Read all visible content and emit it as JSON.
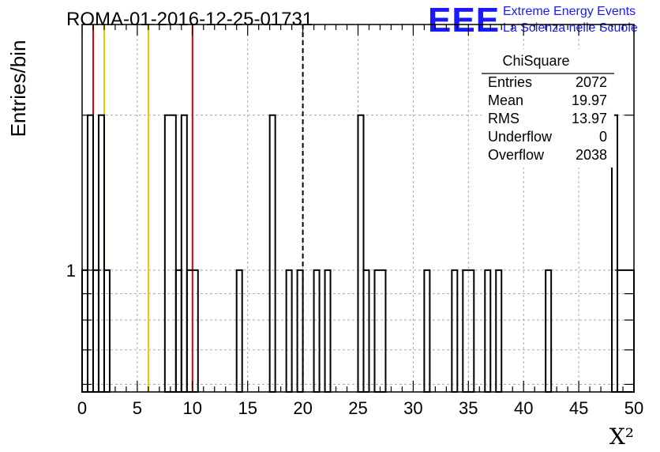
{
  "chart_data": {
    "type": "histogram",
    "title": "ROMA-01-2016-12-25-01731",
    "xlabel": "X²",
    "ylabel": "Entries/bin",
    "xlim": [
      0,
      50
    ],
    "y_scale": "log",
    "ylim": [
      0.58,
      3.0
    ],
    "x_ticks": [
      0,
      5,
      10,
      15,
      20,
      25,
      30,
      35,
      40,
      45,
      50
    ],
    "y_tick_labels": [
      {
        "value": 1,
        "label": "1"
      }
    ],
    "grid": true,
    "bins": [
      {
        "x0": 0.0,
        "x1": 0.5,
        "value": 1
      },
      {
        "x0": 0.5,
        "x1": 1.0,
        "value": 2
      },
      {
        "x0": 1.0,
        "x1": 1.5,
        "value": 1
      },
      {
        "x0": 1.5,
        "x1": 2.0,
        "value": 2
      },
      {
        "x0": 2.0,
        "x1": 2.5,
        "value": 1
      },
      {
        "x0": 7.5,
        "x1": 8.5,
        "value": 2
      },
      {
        "x0": 8.5,
        "x1": 9.0,
        "value": 1
      },
      {
        "x0": 9.0,
        "x1": 9.5,
        "value": 2
      },
      {
        "x0": 9.5,
        "x1": 10.5,
        "value": 1
      },
      {
        "x0": 14.0,
        "x1": 14.5,
        "value": 1
      },
      {
        "x0": 17.0,
        "x1": 17.5,
        "value": 2
      },
      {
        "x0": 18.5,
        "x1": 19.0,
        "value": 1
      },
      {
        "x0": 19.5,
        "x1": 20.0,
        "value": 1
      },
      {
        "x0": 21.0,
        "x1": 21.5,
        "value": 1
      },
      {
        "x0": 22.0,
        "x1": 22.5,
        "value": 1
      },
      {
        "x0": 25.0,
        "x1": 25.5,
        "value": 2
      },
      {
        "x0": 25.5,
        "x1": 26.0,
        "value": 1
      },
      {
        "x0": 26.5,
        "x1": 27.5,
        "value": 1
      },
      {
        "x0": 31.0,
        "x1": 31.5,
        "value": 1
      },
      {
        "x0": 33.5,
        "x1": 34.0,
        "value": 1
      },
      {
        "x0": 34.5,
        "x1": 35.5,
        "value": 1
      },
      {
        "x0": 36.5,
        "x1": 37.0,
        "value": 1
      },
      {
        "x0": 37.5,
        "x1": 38.0,
        "value": 1
      },
      {
        "x0": 42.0,
        "x1": 42.5,
        "value": 1
      },
      {
        "x0": 48.0,
        "x1": 48.5,
        "value": 2
      },
      {
        "x0": 48.5,
        "x1": 50.0,
        "value": 1
      }
    ],
    "vertical_lines": [
      {
        "x": 1.0,
        "color": "#dd0000",
        "style": "solid"
      },
      {
        "x": 2.0,
        "color": "#f5c000",
        "style": "solid"
      },
      {
        "x": 6.0,
        "color": "#f5c000",
        "style": "solid"
      },
      {
        "x": 10.0,
        "color": "#dd0000",
        "style": "solid"
      },
      {
        "x": 20.0,
        "color": "#000000",
        "style": "dashed"
      }
    ],
    "stats_box": {
      "title": "ChiSquare",
      "rows": [
        {
          "label": "Entries",
          "value": "2072"
        },
        {
          "label": "Mean",
          "value": "19.97"
        },
        {
          "label": "RMS",
          "value": "13.97"
        },
        {
          "label": "Underflow",
          "value": "0"
        },
        {
          "label": "Overflow",
          "value": "2038"
        }
      ]
    }
  },
  "logo": {
    "text": "EEE",
    "line1": "Extreme Energy Events",
    "line2": "La Scienza nelle Scuole",
    "color": "#1a1aff"
  }
}
